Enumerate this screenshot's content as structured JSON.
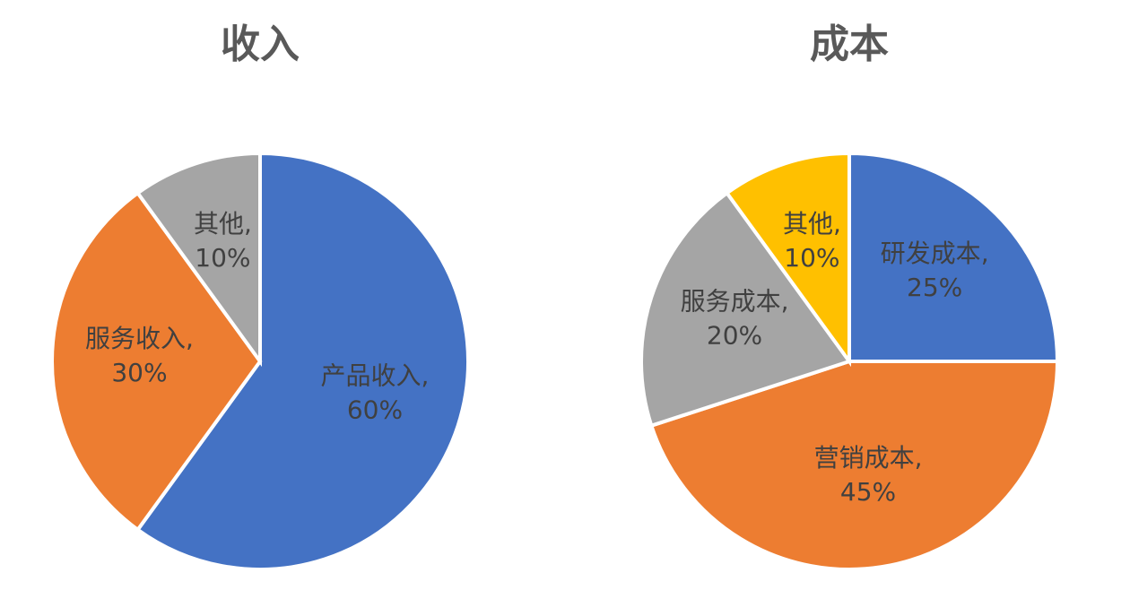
{
  "chart_data": [
    {
      "type": "pie",
      "title": "收入",
      "separator": ",",
      "categories": [
        "产品收入",
        "服务收入",
        "其他"
      ],
      "values": [
        60,
        30,
        10
      ],
      "value_labels": [
        "60%",
        "30%",
        "10%"
      ],
      "colors": [
        "#4472c4",
        "#ed7d31",
        "#a5a5a5"
      ]
    },
    {
      "type": "pie",
      "title": "成本",
      "separator": ",",
      "categories": [
        "研发成本",
        "营销成本",
        "服务成本",
        "其他"
      ],
      "values": [
        25,
        45,
        20,
        10
      ],
      "value_labels": [
        "25%",
        "45%",
        "20%",
        "10%"
      ],
      "colors": [
        "#4472c4",
        "#ed7d31",
        "#a5a5a5",
        "#ffc000"
      ]
    }
  ]
}
